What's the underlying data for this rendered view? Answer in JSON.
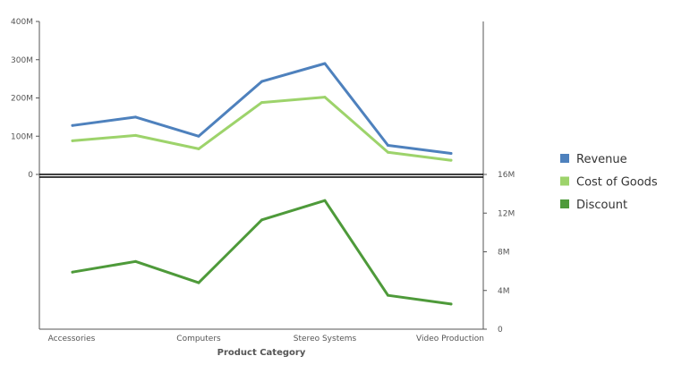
{
  "chart_data": {
    "type": "line",
    "xlabel": "Product Category",
    "categories": [
      "Accessories",
      "",
      "Computers",
      "",
      "Stereo Systems",
      "",
      "Video Production"
    ],
    "visible_x_tick_labels": [
      "Accessories",
      "Computers",
      "Stereo Systems",
      "Video Production"
    ],
    "panels": [
      {
        "name": "upper",
        "ylim": [
          0,
          400
        ],
        "y_tick_labels": [
          "0",
          "100M",
          "200M",
          "300M",
          "400M"
        ],
        "y_tick_values": [
          0,
          100,
          200,
          300,
          400
        ],
        "y_axis_side": "left",
        "series": [
          {
            "name": "Revenue",
            "color": "#4e81bd",
            "values": [
              128,
              150,
              100,
              243,
              290,
              76,
              55
            ]
          },
          {
            "name": "Cost of Goods",
            "color": "#9dd36b",
            "values": [
              88,
              102,
              67,
              188,
              202,
              58,
              37
            ]
          }
        ]
      },
      {
        "name": "lower",
        "ylim": [
          0,
          16
        ],
        "y_tick_labels": [
          "0",
          "4M",
          "8M",
          "12M",
          "16M"
        ],
        "y_tick_values": [
          0,
          4,
          8,
          12,
          16
        ],
        "y_axis_side": "right",
        "series": [
          {
            "name": "Discount",
            "color": "#4e9a3a",
            "values": [
              5.9,
              7.0,
              4.8,
              11.3,
              13.3,
              3.5,
              2.6
            ]
          }
        ]
      }
    ],
    "legend": {
      "placement": "right",
      "items": [
        {
          "label": "Revenue",
          "color": "#4e81bd"
        },
        {
          "label": "Cost of Goods",
          "color": "#9dd36b"
        },
        {
          "label": "Discount",
          "color": "#4e9a3a"
        }
      ]
    },
    "grid": false
  }
}
